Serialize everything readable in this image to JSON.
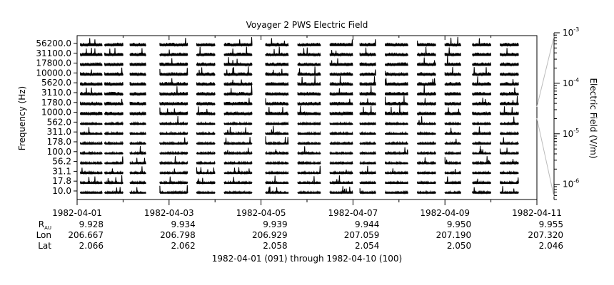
{
  "chart_data": {
    "type": "line",
    "title": "Voyager 2 PWS Electric Field",
    "ylabel": "Frequency (Hz)",
    "y2label": "Electric Field (V/m)",
    "xlabel": "1982-04-01 (091) through 1982-04-10 (100)",
    "xlim": [
      "1982-04-01",
      "1982-04-11"
    ],
    "x_tick_labels": [
      "1982-04-01",
      "1982-04-03",
      "1982-04-05",
      "1982-04-07",
      "1982-04-09",
      "1982-04-11"
    ],
    "channels": [
      "10.0",
      "17.8",
      "31.1",
      "56.2",
      "100.0",
      "178.0",
      "311.0",
      "562.0",
      "1000.0",
      "1780.0",
      "3110.0",
      "5620.0",
      "10000.0",
      "17800.0",
      "31100.0",
      "56200.0"
    ],
    "y2_tick_labels": [
      {
        "base": "10",
        "exp": "-3"
      },
      {
        "base": "10",
        "exp": "-4"
      },
      {
        "base": "10",
        "exp": "-5"
      },
      {
        "base": "10",
        "exp": "-6"
      }
    ],
    "y2_scale": "log",
    "y2lim": [
      5e-07,
      0.001
    ],
    "data_segments_days": [
      [
        0.07,
        0.55
      ],
      [
        0.6,
        1.0
      ],
      [
        1.15,
        1.5
      ],
      [
        1.8,
        2.4
      ],
      [
        2.6,
        3.0
      ],
      [
        3.2,
        3.8
      ],
      [
        4.1,
        4.6
      ],
      [
        4.8,
        5.3
      ],
      [
        5.5,
        6.0
      ],
      [
        6.15,
        6.5
      ],
      [
        6.7,
        7.2
      ],
      [
        7.4,
        7.8
      ],
      [
        8.0,
        8.35
      ],
      [
        8.6,
        9.0
      ],
      [
        9.2,
        9.6
      ]
    ],
    "ephemeris": {
      "rows": [
        {
          "label": "R",
          "sub": "AU",
          "values": [
            "9.928",
            "9.934",
            "9.939",
            "9.944",
            "9.950",
            "9.955"
          ]
        },
        {
          "label": "Lon",
          "sub": "",
          "values": [
            "206.667",
            "206.798",
            "206.929",
            "207.059",
            "207.190",
            "207.320"
          ]
        },
        {
          "label": "Lat",
          "sub": "",
          "values": [
            "2.066",
            "2.062",
            "2.058",
            "2.054",
            "2.050",
            "2.046"
          ]
        }
      ]
    }
  }
}
